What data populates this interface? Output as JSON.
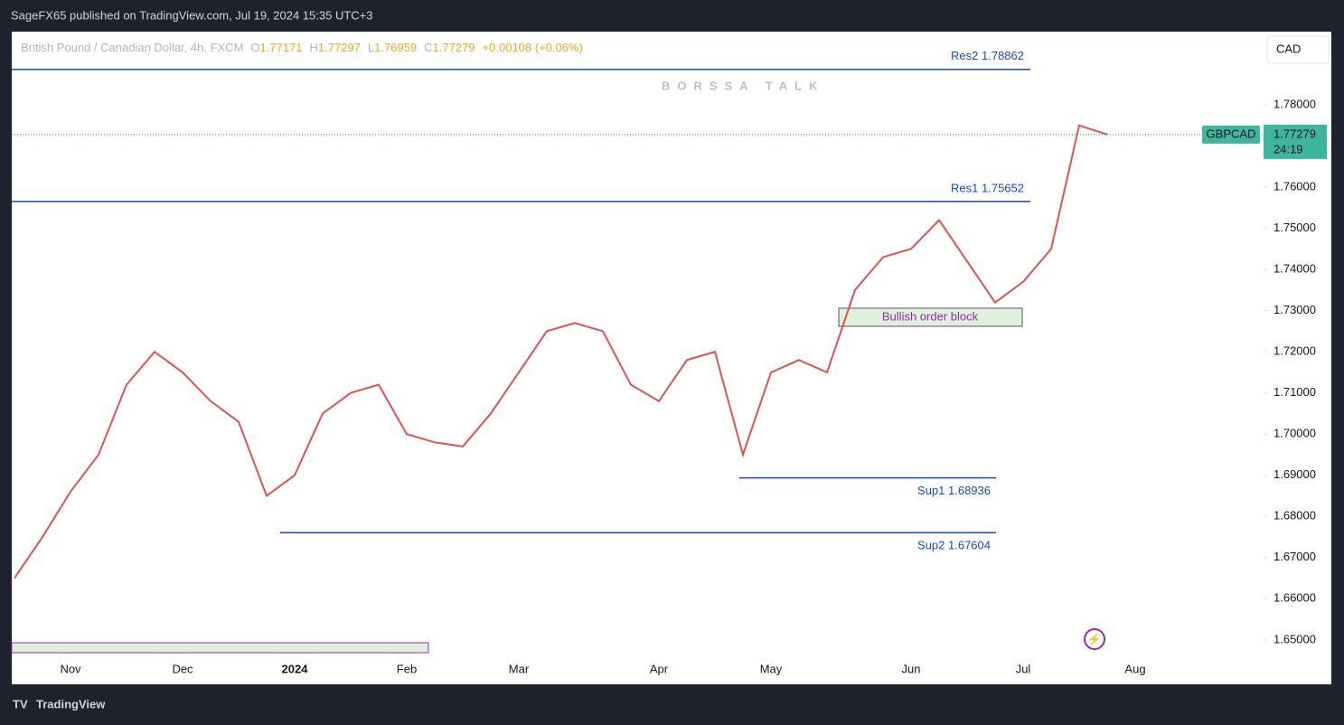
{
  "header": {
    "title": "SageFX65 published on TradingView.com, Jul 19, 2024 15:35 UTC+3",
    "footer": "TradingView",
    "currency_button": "CAD"
  },
  "legend": {
    "symbol": "British Pound / Canadian Dollar, 4h, FXCM",
    "ohlc": [
      {
        "label": "O",
        "value": "1.77171"
      },
      {
        "label": "H",
        "value": "1.77297"
      },
      {
        "label": "L",
        "value": "1.76959"
      },
      {
        "label": "C",
        "value": "1.77279"
      }
    ],
    "change": "+0.00108 (+0.06%)"
  },
  "price_tag": {
    "symbol": "GBPCAD",
    "price": "1.77279",
    "countdown": "24:19"
  },
  "watermark": "BORSSA TALK",
  "chart_data": {
    "type": "line",
    "color": "#e0534f",
    "categories": [
      null,
      null,
      "Nov",
      null,
      null,
      null,
      "Dec",
      null,
      null,
      null,
      "2024",
      null,
      null,
      null,
      "Feb",
      null,
      null,
      null,
      "Mar",
      null,
      null,
      null,
      null,
      "Apr",
      null,
      null,
      null,
      "May",
      null,
      null,
      null,
      null,
      "Jun",
      null,
      null,
      null,
      "Jul",
      null,
      null,
      null,
      "Aug"
    ],
    "series": [
      {
        "name": "GBPCAD",
        "color": "#e0534f",
        "values": [
          1.665,
          1.675,
          1.686,
          1.695,
          1.712,
          1.72,
          1.715,
          1.708,
          1.703,
          1.685,
          1.69,
          1.705,
          1.71,
          1.712,
          1.7,
          1.698,
          1.697,
          1.705,
          1.715,
          1.725,
          1.727,
          1.725,
          1.712,
          1.708,
          1.718,
          1.72,
          1.695,
          1.715,
          1.718,
          1.715,
          1.735,
          1.743,
          1.745,
          1.752,
          1.742,
          1.732,
          1.737,
          1.745,
          1.775,
          1.77279,
          null
        ]
      }
    ],
    "ylim": [
      1.6392,
      1.7978
    ],
    "yticks": [
      {
        "value": 1.65,
        "label": "1.65000"
      },
      {
        "value": 1.66,
        "label": "1.66000"
      },
      {
        "value": 1.67,
        "label": "1.67000"
      },
      {
        "value": 1.68,
        "label": "1.68000"
      },
      {
        "value": 1.69,
        "label": "1.69000"
      },
      {
        "value": 1.7,
        "label": "1.70000"
      },
      {
        "value": 1.71,
        "label": "1.71000"
      },
      {
        "value": 1.72,
        "label": "1.72000"
      },
      {
        "value": 1.73,
        "label": "1.73000"
      },
      {
        "value": 1.74,
        "label": "1.74000"
      },
      {
        "value": 1.75,
        "label": "1.75000"
      },
      {
        "value": 1.76,
        "label": "1.76000"
      },
      {
        "value": 1.78,
        "label": "1.78000"
      }
    ],
    "levels": [
      {
        "label": "Res2 1.78862",
        "value": 1.78862
      },
      {
        "label": "Res1 1.75652",
        "value": 1.75652
      },
      {
        "label": "Sup1 1.68936",
        "value": 1.68936
      },
      {
        "label": "Sup2 1.67604",
        "value": 1.67604
      }
    ],
    "zone": {
      "label": "Bullish order block",
      "values": [
        1.7306,
        1.7262
      ]
    }
  }
}
